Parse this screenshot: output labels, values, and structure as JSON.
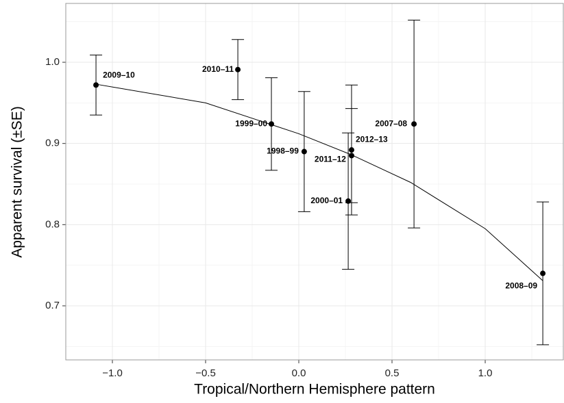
{
  "chart_data": {
    "type": "scatter",
    "x_label": "Tropical/Northern Hemisphere pattern",
    "y_label": "Apparent survival (±SE)",
    "labels": [
      "2009–10",
      "2010–11",
      "1999–00",
      "1998–99",
      "2000–01",
      "2011–12",
      "2012–13",
      "2007–08",
      "2008–09"
    ],
    "x": [
      -1.088,
      -0.327,
      -0.147,
      0.029,
      0.265,
      0.283,
      0.283,
      0.618,
      1.309
    ],
    "values": [
      0.972,
      0.991,
      0.924,
      0.89,
      0.829,
      0.885,
      0.892,
      0.924,
      0.74
    ],
    "errors": [
      0.037,
      0.037,
      0.057,
      0.074,
      0.084,
      0.058,
      0.08,
      0.128,
      0.088
    ],
    "color": "#000000",
    "fit": {
      "x": [
        -1.088,
        -0.5,
        0,
        0.283,
        0.6,
        1.0,
        1.309
      ],
      "y": [
        0.973,
        0.95,
        0.912,
        0.886,
        0.852,
        0.795,
        0.731
      ]
    },
    "xlim": [
      -1.25,
      1.419
    ],
    "ylim": [
      0.6334,
      1.0725
    ],
    "xticks": [
      {
        "value": -1,
        "label": "−1.0"
      },
      {
        "value": -0.5,
        "label": "−0.5"
      },
      {
        "value": 0,
        "label": "0.0"
      },
      0.5,
      {
        "value": 1,
        "label": "1.0"
      }
    ],
    "yticks": [
      0.7,
      0.8,
      0.9,
      {
        "value": 1,
        "label": "1.0"
      }
    ],
    "xminor": [
      -0.75,
      -0.25,
      0.25,
      0.75,
      1.25
    ],
    "yminor": [
      0.65,
      0.75,
      0.85,
      0.95,
      1.05
    ],
    "grid": true
  }
}
